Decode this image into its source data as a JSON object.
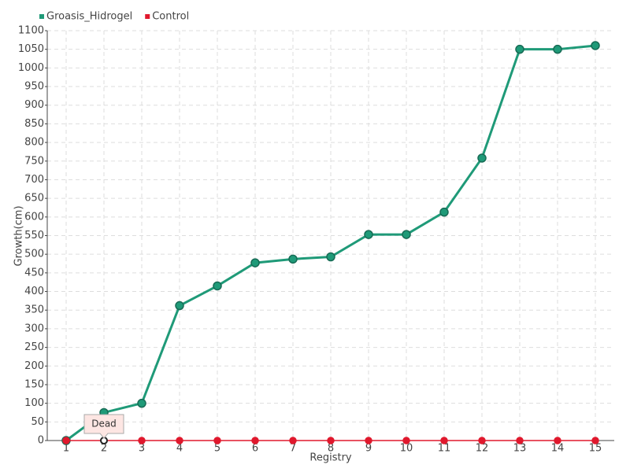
{
  "chart_data": {
    "type": "line",
    "x_label": "Registry",
    "y_label": "Growth(cm)",
    "categories": [
      "1",
      "2",
      "3",
      "4",
      "5",
      "6",
      "7",
      "8",
      "9",
      "10",
      "11",
      "12",
      "13",
      "14",
      "15"
    ],
    "series": [
      {
        "name": "Groasis_Hidrogel",
        "color": "#1f9a78",
        "values": [
          0,
          75,
          100,
          362,
          415,
          477,
          487,
          493,
          553,
          553,
          613,
          758,
          1050,
          1050,
          1060
        ]
      },
      {
        "name": "Control",
        "color": "#e0182d",
        "values": [
          0,
          0,
          0,
          0,
          0,
          0,
          0,
          0,
          0,
          0,
          0,
          0,
          0,
          0,
          0
        ]
      }
    ],
    "ylim": [
      0,
      1100
    ],
    "yticks": [
      0,
      50,
      100,
      150,
      200,
      250,
      300,
      350,
      400,
      450,
      500,
      550,
      600,
      650,
      700,
      750,
      800,
      850,
      900,
      950,
      1000,
      1050,
      1100
    ],
    "grid": true,
    "legend": "top-left",
    "annotation": "Dead"
  }
}
